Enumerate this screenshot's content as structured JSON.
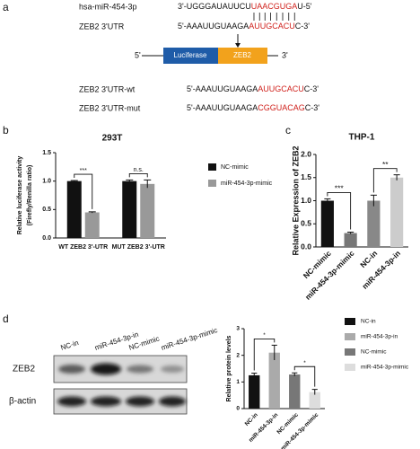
{
  "panels": [
    "a",
    "b",
    "c",
    "d"
  ],
  "sequence_diagram": {
    "rows": [
      {
        "label": "hsa-miR-454-3p",
        "sequence": [
          "3'-UGGGAUAUUCU",
          "UAACGUGA",
          "U-5'"
        ]
      },
      {
        "label": "ZEB2 3'UTR",
        "sequence": [
          "5'-AAAUUGUAAGA",
          "AUUGCACU",
          "C-3'"
        ]
      }
    ],
    "construct": {
      "five_prime": "5'",
      "reporter": "Luciferase",
      "insert": "ZEB2",
      "three_prime": "3'"
    },
    "variants": [
      {
        "label": "ZEB2 3'UTR-wt",
        "sequence": [
          "5'-AAAUUGUAAGA",
          "AUUGCACU",
          "C-3'"
        ]
      },
      {
        "label": "ZEB2 3'UTR-mut",
        "sequence": [
          "5'-AAAUUGUAAGA",
          "CGGUACAG",
          "C-3'"
        ]
      }
    ]
  },
  "chart_data": [
    {
      "type": "bar",
      "title": "293T",
      "ylabel": [
        "Relative luciferase activity",
        "(Firefly/Renilla ratio)"
      ],
      "categories": [
        "WT ZEB2 3'-UTR",
        "MUT ZEB2 3'-UTR"
      ],
      "series": [
        {
          "name": "NC-mimic",
          "color": "#111111",
          "values": [
            1.0,
            1.0
          ],
          "errors": [
            0.01,
            0.02
          ]
        },
        {
          "name": "miR-454-3p-mimic",
          "color": "#999999",
          "values": [
            0.45,
            0.95
          ],
          "errors": [
            0.01,
            0.07
          ]
        }
      ],
      "ylim": [
        0,
        1.5
      ],
      "yticks": [
        {
          "value": 0,
          "label": "0.0"
        },
        {
          "value": 0.5,
          "label": "0.5"
        },
        {
          "value": 1,
          "label": "1.0"
        },
        {
          "value": 1.5,
          "label": "1.5"
        }
      ],
      "annotations": [
        "***",
        "n.s."
      ],
      "legend": "right"
    },
    {
      "type": "bar",
      "title": "THP-1",
      "ylabel": "Relative Expression of ZEB2",
      "categories": [
        "NC-mimic",
        "miR-454-3p-mimic",
        "NC-in",
        "miR-454-3p-in"
      ],
      "values": [
        1.0,
        0.3,
        1.0,
        1.5
      ],
      "errors": [
        0.04,
        0.02,
        0.12,
        0.06
      ],
      "colors": [
        "#111111",
        "#777777",
        "#888888",
        "#cccccc"
      ],
      "ylim": [
        0,
        2
      ],
      "yticks": [
        {
          "value": 0,
          "label": "0.0"
        },
        {
          "value": 0.5,
          "label": "0.5"
        },
        {
          "value": 1,
          "label": "1.0"
        },
        {
          "value": 1.5,
          "label": "1.5"
        },
        {
          "value": 2,
          "label": "2.0"
        }
      ],
      "annotations": [
        "***",
        "**"
      ]
    },
    {
      "type": "bar",
      "ylabel": "Relative protein levels",
      "categories": [
        "NC-in",
        "miR-454-3p-in",
        "NC-mimic",
        "miR-454-3p-mimic"
      ],
      "values": [
        1.25,
        2.1,
        1.28,
        0.62
      ],
      "errors": [
        0.08,
        0.28,
        0.06,
        0.1
      ],
      "colors": [
        "#111111",
        "#aaaaaa",
        "#777777",
        "#dddddd"
      ],
      "ylim": [
        0,
        3
      ],
      "yticks": [
        0,
        1,
        2,
        3
      ],
      "annotations": [
        "*",
        "*"
      ],
      "legend": "right"
    }
  ],
  "western_blot": {
    "lanes": [
      "NC-in",
      "miR-454-3p-in",
      "NC-mimic",
      "miR-454-3p-mimic"
    ],
    "proteins": [
      "ZEB2",
      "β-actin"
    ]
  }
}
